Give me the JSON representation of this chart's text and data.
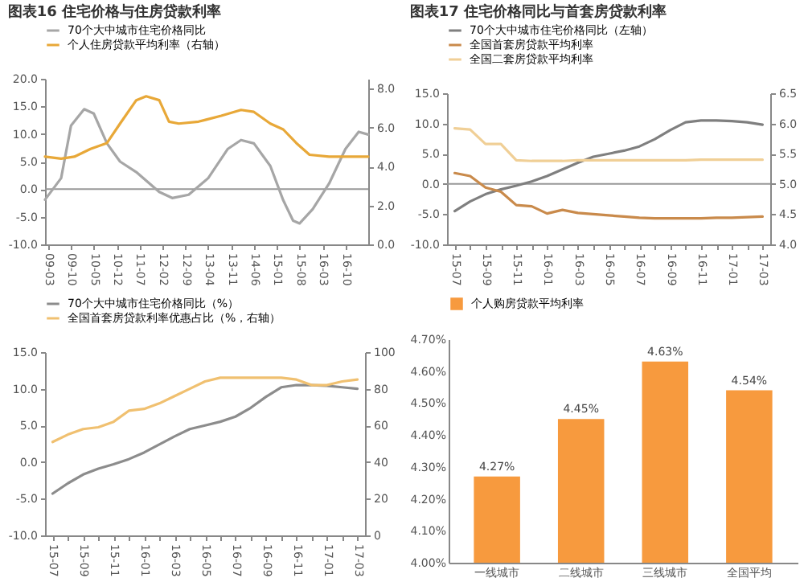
{
  "chart_data": [
    {
      "type": "line",
      "title": "图表16    住宅价格与住房贷款利率",
      "legend": "top",
      "xlim": [
        "2009-02",
        "2017-05"
      ],
      "xticks": [
        {
          "value": "2009-03",
          "label": "09-03"
        },
        {
          "value": "2009-10",
          "label": "09-10"
        },
        {
          "value": "2010-05",
          "label": "10-05"
        },
        {
          "value": "2010-12",
          "label": "10-12"
        },
        {
          "value": "2011-07",
          "label": "11-07"
        },
        {
          "value": "2012-02",
          "label": "12-02"
        },
        {
          "value": "2012-09",
          "label": "12-09"
        },
        {
          "value": "2013-04",
          "label": "13-04"
        },
        {
          "value": "2013-11",
          "label": "13-11"
        },
        {
          "value": "2014-06",
          "label": "14-06"
        },
        {
          "value": "2015-01",
          "label": "15-01"
        },
        {
          "value": "2015-08",
          "label": "15-08"
        },
        {
          "value": "2016-03",
          "label": "16-03"
        },
        {
          "value": "2016-10",
          "label": "16-10"
        }
      ],
      "ylim": [
        -10,
        20
      ],
      "yticks": [
        {
          "value": -10,
          "label": "-10.0"
        },
        {
          "value": -5,
          "label": "-5.0"
        },
        {
          "value": 0,
          "label": "0.0"
        },
        {
          "value": 5,
          "label": "5.0"
        },
        {
          "value": 10,
          "label": "10.0"
        },
        {
          "value": 15,
          "label": "15.0"
        },
        {
          "value": 20,
          "label": "20.0"
        }
      ],
      "y2lim": [
        0,
        8.5
      ],
      "y2ticks": [
        {
          "value": 0,
          "label": "0.0"
        },
        {
          "value": 2,
          "label": "2.0"
        },
        {
          "value": 4,
          "label": "4.0"
        },
        {
          "value": 6,
          "label": "6.0"
        },
        {
          "value": 8,
          "label": "8.0"
        }
      ],
      "ref_lines": [
        {
          "axis": "y",
          "value": 0
        }
      ],
      "series": [
        {
          "name": "70个大中城市住宅价格同比",
          "color": "#a6a6a6",
          "x": [
            "2009-02",
            "2009-07",
            "2009-10",
            "2010-02",
            "2010-05",
            "2010-09",
            "2011-01",
            "2011-06",
            "2012-01",
            "2012-05",
            "2012-10",
            "2013-04",
            "2013-10",
            "2014-02",
            "2014-06",
            "2014-11",
            "2015-03",
            "2015-06",
            "2015-08",
            "2015-12",
            "2016-05",
            "2016-10",
            "2017-02",
            "2017-05"
          ],
          "values": [
            -1.9,
            2,
            11.5,
            14.5,
            13.7,
            8.3,
            5,
            3.1,
            -0.5,
            -1.6,
            -1,
            2,
            7.3,
            8.9,
            8.3,
            4.2,
            -2,
            -5.7,
            -6.2,
            -3.6,
            1,
            7.3,
            10.4,
            9.9
          ]
        },
        {
          "name": "个人住房贷款平均利率（右轴）",
          "color": "#e8a838",
          "axis": "y2",
          "x": [
            "2009-02",
            "2009-07",
            "2009-11",
            "2010-04",
            "2010-09",
            "2011-01",
            "2011-06",
            "2011-09",
            "2012-01",
            "2012-04",
            "2012-07",
            "2013-01",
            "2013-08",
            "2014-02",
            "2014-06",
            "2014-11",
            "2015-03",
            "2015-07",
            "2015-11",
            "2016-05",
            "2017-05"
          ],
          "values": [
            4.5,
            4.4,
            4.5,
            4.9,
            5.2,
            6.2,
            7.4,
            7.6,
            7.4,
            6.3,
            6.2,
            6.3,
            6.6,
            6.9,
            6.8,
            6.2,
            5.9,
            5.2,
            4.6,
            4.5,
            4.5
          ]
        }
      ]
    },
    {
      "type": "line",
      "title": "图表17    住宅价格同比与首套房贷款利率",
      "legend": "top",
      "categories": [
        "15-07",
        null,
        "15-09",
        null,
        "15-11",
        null,
        "16-01",
        null,
        "16-03",
        null,
        "16-05",
        null,
        "16-07",
        null,
        "16-09",
        null,
        "16-11",
        null,
        "17-01",
        null,
        "17-03"
      ],
      "ylim": [
        -10,
        15
      ],
      "yticks": [
        {
          "value": -10,
          "label": "-10.0"
        },
        {
          "value": -5,
          "label": "-5.0"
        },
        {
          "value": 0,
          "label": "0.0"
        },
        {
          "value": 5,
          "label": "5.0"
        },
        {
          "value": 10,
          "label": "10.0"
        },
        {
          "value": 15,
          "label": "15.0"
        }
      ],
      "y2lim": [
        4,
        6.5
      ],
      "y2ticks": [
        {
          "value": 4,
          "label": "4.0"
        },
        {
          "value": 4.5,
          "label": "4.5"
        },
        {
          "value": 5,
          "label": "5.0"
        },
        {
          "value": 5.5,
          "label": "5.5"
        },
        {
          "value": 6,
          "label": "6.0"
        },
        {
          "value": 6.5,
          "label": "6.5"
        }
      ],
      "ref_lines": [
        {
          "axis": "y",
          "value": 0
        }
      ],
      "series": [
        {
          "name": "70个大中城市住宅价格同比（左轴）",
          "color": "#7f7f7f",
          "values": [
            -4.5,
            -2.9,
            -1.7,
            -0.9,
            -0.3,
            0.4,
            1.3,
            2.4,
            3.5,
            4.5,
            5.0,
            5.5,
            6.2,
            7.4,
            8.9,
            10.2,
            10.5,
            10.5,
            10.4,
            10.2,
            9.8
          ]
        },
        {
          "name": "全国首套房贷款平均利率",
          "color": "#c98a4b",
          "axis": "y2",
          "values": [
            5.18,
            5.13,
            4.94,
            4.87,
            4.65,
            4.63,
            4.51,
            4.57,
            4.52,
            4.5,
            4.48,
            4.46,
            4.44,
            4.43,
            4.43,
            4.43,
            4.43,
            4.44,
            4.44,
            4.45,
            4.46
          ]
        },
        {
          "name": "全国二套房贷款平均利率",
          "color": "#f0cf96",
          "axis": "y2",
          "values": [
            5.92,
            5.9,
            5.66,
            5.66,
            5.39,
            5.38,
            5.38,
            5.38,
            5.39,
            5.39,
            5.39,
            5.39,
            5.39,
            5.39,
            5.39,
            5.39,
            5.4,
            5.4,
            5.4,
            5.4,
            5.4
          ]
        }
      ]
    },
    {
      "type": "line",
      "legend": "top",
      "categories": [
        "15-07",
        null,
        "15-09",
        null,
        "15-11",
        null,
        "16-01",
        null,
        "16-03",
        null,
        "16-05",
        null,
        "16-07",
        null,
        "16-09",
        null,
        "16-11",
        null,
        "17-01",
        null,
        "17-03"
      ],
      "ylim": [
        -10,
        15
      ],
      "yticks": [
        {
          "value": -10,
          "label": "-10.0"
        },
        {
          "value": -5,
          "label": "-5.0"
        },
        {
          "value": 0,
          "label": "0.0"
        },
        {
          "value": 5,
          "label": "5.0"
        },
        {
          "value": 10,
          "label": "10.0"
        },
        {
          "value": 15,
          "label": "15.0"
        }
      ],
      "y2lim": [
        0,
        100
      ],
      "y2ticks": [
        0,
        20,
        40,
        60,
        80,
        100
      ],
      "series": [
        {
          "name": "70个大中城市住宅价格同比（%）",
          "color": "#8c8c8c",
          "values": [
            -4.3,
            -2.9,
            -1.7,
            -0.9,
            -0.3,
            0.4,
            1.3,
            2.4,
            3.5,
            4.5,
            5.0,
            5.5,
            6.2,
            7.4,
            8.9,
            10.2,
            10.5,
            10.5,
            10.4,
            10.2,
            10.0
          ]
        },
        {
          "name": "全国首套房贷款利率优惠占比（%，右轴）",
          "color": "#f0c070",
          "axis": "y2",
          "values": [
            51,
            55,
            58,
            59,
            62,
            68,
            69,
            72,
            76,
            80,
            84,
            86,
            86,
            86,
            86,
            86,
            85,
            82,
            82,
            84,
            85
          ]
        }
      ]
    },
    {
      "type": "bar",
      "legend": "top",
      "categories": [
        "一线城市",
        "二线城市",
        "三线城市",
        "全国平均"
      ],
      "ylim": [
        4.0,
        4.7
      ],
      "yticks": [
        {
          "value": 4.0,
          "label": "4.00%"
        },
        {
          "value": 4.1,
          "label": "4.10%"
        },
        {
          "value": 4.2,
          "label": "4.20%"
        },
        {
          "value": 4.3,
          "label": "4.30%"
        },
        {
          "value": 4.4,
          "label": "4.40%"
        },
        {
          "value": 4.5,
          "label": "4.50%"
        },
        {
          "value": 4.6,
          "label": "4.60%"
        },
        {
          "value": 4.7,
          "label": "4.70%"
        }
      ],
      "series": [
        {
          "name": "个人购房贷款平均利率",
          "color": "#f79a3e",
          "values": [
            4.27,
            4.45,
            4.63,
            4.54
          ],
          "value_labels": [
            "4.27%",
            "4.45%",
            "4.63%",
            "4.54%"
          ]
        }
      ]
    }
  ]
}
